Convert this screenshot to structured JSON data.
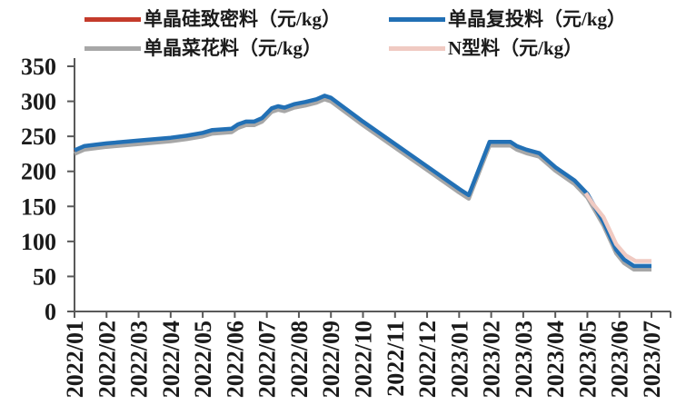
{
  "legend": {
    "items": [
      {
        "key": "dense",
        "label": "单晶硅致密料（元/kg）",
        "color": "#C43B2B"
      },
      {
        "key": "chunk",
        "label": "单晶复投料（元/kg）",
        "color": "#2270B5"
      },
      {
        "key": "cauliflower",
        "label": "单晶菜花料（元/kg）",
        "color": "#A7A7A7"
      },
      {
        "key": "ntype",
        "label": "N型料（元/kg）",
        "color": "#F0CAC2"
      }
    ]
  },
  "chart_data": {
    "type": "line",
    "title": "",
    "unit": "元/kg",
    "grid": false,
    "legend_position": "top",
    "axis_color": "#595959",
    "text_color": "#1b1b1b",
    "ylim": [
      0,
      350
    ],
    "y_ticks": [
      0,
      50,
      100,
      150,
      200,
      250,
      300,
      350
    ],
    "categories": [
      "2022/01",
      "2022/02",
      "2022/03",
      "2022/04",
      "2022/05",
      "2022/06",
      "2022/07",
      "2022/08",
      "2022/09",
      "2022/10",
      "2022/11",
      "2022/12",
      "2023/01",
      "2023/02",
      "2023/03",
      "2023/04",
      "2023/05",
      "2023/06",
      "2023/07"
    ],
    "x_note": "series points are [fractional month index into categories, price 元/kg]",
    "series": [
      {
        "key": "dense",
        "name": "单晶硅致密料（元/kg）",
        "color": "#C43B2B",
        "points": [
          [
            0,
            229
          ],
          [
            0.3,
            235
          ],
          [
            1,
            239
          ],
          [
            2,
            243
          ],
          [
            3,
            247
          ],
          [
            3.5,
            250
          ],
          [
            4,
            254
          ],
          [
            4.3,
            258
          ],
          [
            4.9,
            260
          ],
          [
            5.1,
            266
          ],
          [
            5.35,
            270
          ],
          [
            5.6,
            270
          ],
          [
            5.85,
            275
          ],
          [
            6.15,
            289
          ],
          [
            6.35,
            292
          ],
          [
            6.55,
            290
          ],
          [
            6.85,
            295
          ],
          [
            7.2,
            298
          ],
          [
            7.55,
            302
          ],
          [
            7.8,
            307
          ],
          [
            8,
            304
          ],
          [
            9,
            270
          ],
          [
            10,
            238
          ],
          [
            11,
            206
          ],
          [
            12,
            174
          ],
          [
            12.3,
            165
          ],
          [
            12.95,
            241
          ],
          [
            13.6,
            241
          ],
          [
            13.8,
            235
          ],
          [
            14.1,
            230
          ],
          [
            14.5,
            225
          ],
          [
            15,
            205
          ],
          [
            15.6,
            186
          ],
          [
            16,
            167
          ],
          [
            16.5,
            127
          ],
          [
            16.9,
            87
          ],
          [
            17.15,
            73
          ],
          [
            17.45,
            64
          ],
          [
            18,
            64
          ]
        ]
      },
      {
        "key": "cauliflower",
        "name": "单晶菜花料（元/kg）",
        "color": "#A7A7A7",
        "points": [
          [
            0,
            225
          ],
          [
            0.3,
            231
          ],
          [
            1,
            235
          ],
          [
            2,
            239
          ],
          [
            3,
            243
          ],
          [
            3.5,
            246
          ],
          [
            4,
            250
          ],
          [
            4.3,
            254
          ],
          [
            4.9,
            256
          ],
          [
            5.1,
            262
          ],
          [
            5.35,
            266
          ],
          [
            5.6,
            266
          ],
          [
            5.85,
            271
          ],
          [
            6.15,
            285
          ],
          [
            6.35,
            288
          ],
          [
            6.55,
            286
          ],
          [
            6.85,
            291
          ],
          [
            7.2,
            294
          ],
          [
            7.55,
            298
          ],
          [
            7.8,
            303
          ],
          [
            8,
            300
          ],
          [
            9,
            266
          ],
          [
            10,
            234
          ],
          [
            11,
            202
          ],
          [
            12,
            170
          ],
          [
            12.3,
            161
          ],
          [
            12.95,
            237
          ],
          [
            13.6,
            237
          ],
          [
            13.8,
            231
          ],
          [
            14.1,
            226
          ],
          [
            14.5,
            221
          ],
          [
            15,
            201
          ],
          [
            15.6,
            182
          ],
          [
            16,
            163
          ],
          [
            16.5,
            123
          ],
          [
            16.9,
            83
          ],
          [
            17.15,
            69
          ],
          [
            17.45,
            60
          ],
          [
            18,
            60
          ]
        ]
      },
      {
        "key": "chunk",
        "name": "单晶复投料（元/kg）",
        "color": "#2270B5",
        "points": [
          [
            0,
            230
          ],
          [
            0.3,
            236
          ],
          [
            1,
            240
          ],
          [
            2,
            244
          ],
          [
            3,
            248
          ],
          [
            3.5,
            251
          ],
          [
            4,
            255
          ],
          [
            4.3,
            259
          ],
          [
            4.9,
            261
          ],
          [
            5.1,
            267
          ],
          [
            5.35,
            271
          ],
          [
            5.6,
            271
          ],
          [
            5.85,
            276
          ],
          [
            6.15,
            290
          ],
          [
            6.35,
            293
          ],
          [
            6.55,
            291
          ],
          [
            6.85,
            296
          ],
          [
            7.2,
            299
          ],
          [
            7.55,
            303
          ],
          [
            7.8,
            308
          ],
          [
            8,
            305
          ],
          [
            9,
            271
          ],
          [
            10,
            239
          ],
          [
            11,
            207
          ],
          [
            12,
            175
          ],
          [
            12.3,
            166
          ],
          [
            12.95,
            242
          ],
          [
            13.6,
            242
          ],
          [
            13.8,
            236
          ],
          [
            14.1,
            231
          ],
          [
            14.5,
            226
          ],
          [
            15,
            206
          ],
          [
            15.6,
            187
          ],
          [
            16,
            168
          ],
          [
            16.5,
            128
          ],
          [
            16.9,
            88
          ],
          [
            17.15,
            74
          ],
          [
            17.45,
            65
          ],
          [
            18,
            65
          ]
        ]
      },
      {
        "key": "ntype",
        "name": "N型料（元/kg）",
        "color": "#F0CAC2",
        "points": [
          [
            15.95,
            169
          ],
          [
            16.2,
            152
          ],
          [
            16.5,
            135
          ],
          [
            16.9,
            96
          ],
          [
            17.2,
            80
          ],
          [
            17.5,
            72
          ],
          [
            18,
            72
          ]
        ]
      }
    ],
    "monthly_values": {
      "dense": [
        229,
        239,
        243,
        247,
        254,
        263,
        287,
        297,
        304,
        270,
        238,
        206,
        174,
        241,
        230,
        205,
        167,
        79,
        64
      ],
      "chunk": [
        230,
        240,
        244,
        248,
        255,
        264,
        288,
        298,
        305,
        271,
        239,
        207,
        175,
        242,
        231,
        206,
        168,
        80,
        65
      ],
      "cauliflower": [
        225,
        235,
        239,
        243,
        250,
        259,
        283,
        293,
        300,
        266,
        234,
        202,
        170,
        237,
        226,
        201,
        163,
        75,
        60
      ],
      "ntype": [
        null,
        null,
        null,
        null,
        null,
        null,
        null,
        null,
        null,
        null,
        null,
        null,
        null,
        null,
        null,
        null,
        169,
        90,
        72
      ]
    }
  }
}
